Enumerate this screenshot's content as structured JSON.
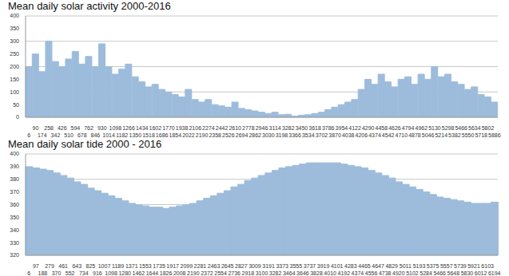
{
  "chart_data": [
    {
      "type": "bar",
      "title": "Mean daily solar activity 2000-2016",
      "categories": [
        6,
        90,
        174,
        258,
        342,
        426,
        510,
        594,
        678,
        762,
        846,
        930,
        1014,
        1098,
        1182,
        1266,
        1350,
        1434,
        1518,
        1602,
        1686,
        1770,
        1854,
        1938,
        2022,
        2106,
        2190,
        2274,
        2358,
        2442,
        2526,
        2610,
        2694,
        2778,
        2862,
        2946,
        3030,
        3114,
        3198,
        3282,
        3366,
        3450,
        3534,
        3618,
        3702,
        3786,
        3870,
        3954,
        4038,
        4122,
        4206,
        4290,
        4374,
        4458,
        4542,
        4626,
        4710,
        4794,
        4878,
        4962,
        5046,
        5130,
        5214,
        5298,
        5382,
        5466,
        5550,
        5634,
        5718,
        5802,
        5886
      ],
      "values": [
        200,
        250,
        180,
        300,
        220,
        200,
        230,
        260,
        210,
        240,
        200,
        290,
        200,
        170,
        190,
        210,
        160,
        140,
        120,
        130,
        110,
        100,
        90,
        80,
        110,
        70,
        60,
        70,
        50,
        45,
        40,
        60,
        35,
        30,
        25,
        20,
        15,
        20,
        10,
        12,
        5,
        8,
        10,
        15,
        20,
        30,
        40,
        50,
        60,
        70,
        110,
        150,
        130,
        170,
        140,
        120,
        150,
        160,
        130,
        170,
        150,
        200,
        160,
        170,
        140,
        130,
        110,
        120,
        90,
        80,
        60
      ],
      "color": "#9dbcdc",
      "ylim": [
        0,
        400
      ],
      "yticks": [
        0,
        50,
        100,
        150,
        200,
        250,
        300,
        350,
        400
      ],
      "grid": true
    },
    {
      "type": "bar",
      "title": "Mean daily solar tide 2000 - 2016",
      "categories": [
        6,
        97,
        188,
        279,
        370,
        461,
        552,
        643,
        734,
        825,
        916,
        1007,
        1098,
        1189,
        1280,
        1371,
        1462,
        1553,
        1644,
        1735,
        1826,
        1917,
        2008,
        2099,
        2190,
        2281,
        2372,
        2463,
        2554,
        2645,
        2736,
        2827,
        2918,
        3009,
        3100,
        3191,
        3282,
        3373,
        3464,
        3555,
        3646,
        3737,
        3828,
        3919,
        4010,
        4101,
        4192,
        4283,
        4374,
        4465,
        4556,
        4647,
        4738,
        4829,
        4920,
        5011,
        5102,
        5193,
        5284,
        5375,
        5466,
        5557,
        5648,
        5739,
        5830,
        5921,
        6012,
        6103,
        6194
      ],
      "values": [
        390,
        389,
        388,
        387,
        385,
        383,
        381,
        378,
        376,
        373,
        371,
        369,
        367,
        365,
        363,
        361,
        360,
        359,
        358,
        358,
        357,
        358,
        359,
        360,
        361,
        363,
        365,
        367,
        369,
        371,
        374,
        376,
        379,
        381,
        383,
        385,
        387,
        389,
        390,
        391,
        392,
        393,
        393,
        393,
        393,
        393,
        392,
        391,
        390,
        389,
        387,
        385,
        383,
        381,
        378,
        376,
        374,
        372,
        370,
        368,
        366,
        365,
        364,
        363,
        362,
        361,
        361,
        361,
        362
      ],
      "color": "#9dbcdc",
      "ylim": [
        320,
        400
      ],
      "yticks": [
        320,
        330,
        340,
        350,
        360,
        370,
        380,
        390,
        400
      ],
      "grid": true
    }
  ]
}
